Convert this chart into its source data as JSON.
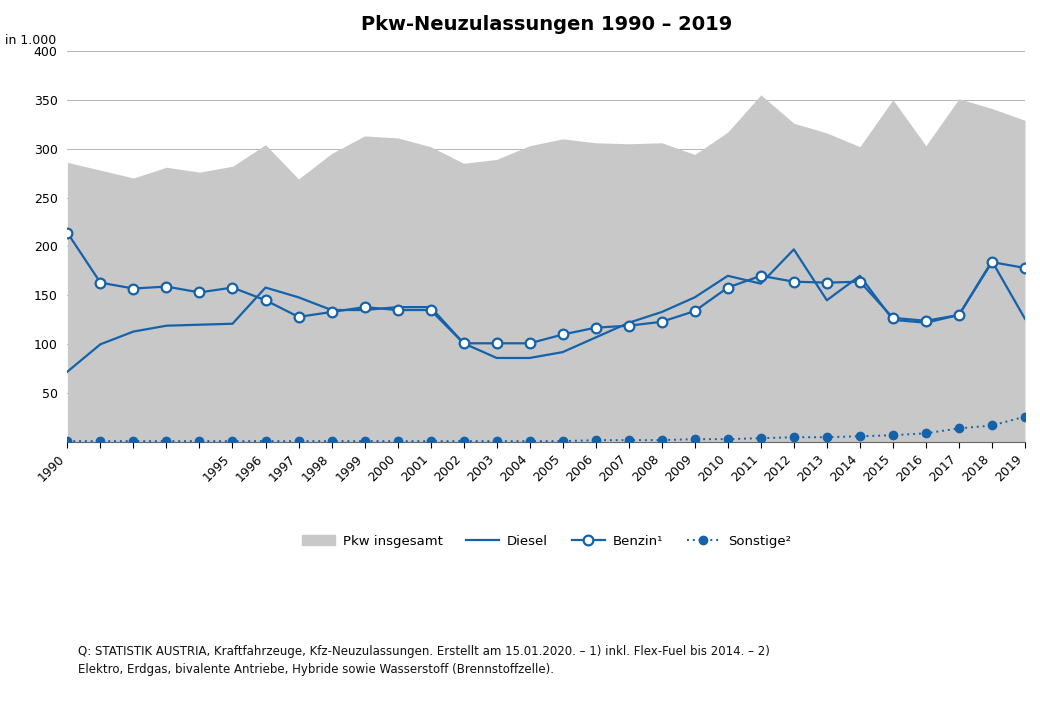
{
  "title": "Pkw-Neuzulassungen 1990 – 2019",
  "ylabel": "in 1.000",
  "years": [
    1990,
    1991,
    1992,
    1993,
    1994,
    1995,
    1996,
    1997,
    1998,
    1999,
    2000,
    2001,
    2002,
    2003,
    2004,
    2005,
    2006,
    2007,
    2008,
    2009,
    2010,
    2011,
    2012,
    2013,
    2014,
    2015,
    2016,
    2017,
    2018,
    2019
  ],
  "xtick_labels": [
    "1990",
    "",
    "",
    "",
    "",
    "1995",
    "1996",
    "1997",
    "1998",
    "1999",
    "2000",
    "2001",
    "2002",
    "2003",
    "2004",
    "2005",
    "2006",
    "2007",
    "2008",
    "2009",
    "2010",
    "2011",
    "2012",
    "2013",
    "2014",
    "2015",
    "2016",
    "2017",
    "2018",
    "2019"
  ],
  "pkw_gesamt": [
    286,
    278,
    270,
    281,
    276,
    282,
    304,
    269,
    295,
    313,
    311,
    302,
    285,
    289,
    303,
    310,
    306,
    305,
    306,
    294,
    317,
    355,
    326,
    316,
    302,
    350,
    303,
    351,
    341,
    329
  ],
  "diesel": [
    72,
    100,
    113,
    119,
    120,
    121,
    158,
    148,
    135,
    135,
    138,
    138,
    101,
    86,
    86,
    92,
    107,
    122,
    133,
    148,
    170,
    162,
    197,
    145,
    170,
    125,
    122,
    130,
    185,
    126
  ],
  "benzin": [
    214,
    163,
    157,
    159,
    153,
    158,
    145,
    128,
    133,
    138,
    135,
    135,
    101,
    101,
    101,
    110,
    117,
    119,
    123,
    134,
    158,
    170,
    164,
    163,
    164,
    127,
    124,
    130,
    184,
    178
  ],
  "sonstige": [
    1,
    1,
    1,
    1,
    1,
    1,
    1,
    1,
    1,
    1,
    1,
    1,
    1,
    1,
    1,
    1,
    2,
    2,
    2,
    3,
    3,
    4,
    5,
    5,
    6,
    7,
    9,
    14,
    17,
    26
  ],
  "line_color": "#1462aa",
  "fill_color": "#c8c8c8",
  "background_color": "#ffffff",
  "source_text_line1": "Q: STATISTIK AUSTRIA, Kraftfahrzeuge, Kfz-Neuzulassungen. Erstellt am 15.01.2020. – 1) inkl. Flex-Fuel bis 2014. – 2)",
  "source_text_line2": "Elektro, Erdgas, bivalente Antriebe, Hybride sowie Wasserstoff (Brennstoffzelle).",
  "ylim": [
    0,
    400
  ],
  "yticks": [
    0,
    50,
    100,
    150,
    200,
    250,
    300,
    350,
    400
  ],
  "legend_labels": [
    "Pkw insgesamt",
    "Diesel",
    "Benzin¹",
    "Sonstige²"
  ]
}
